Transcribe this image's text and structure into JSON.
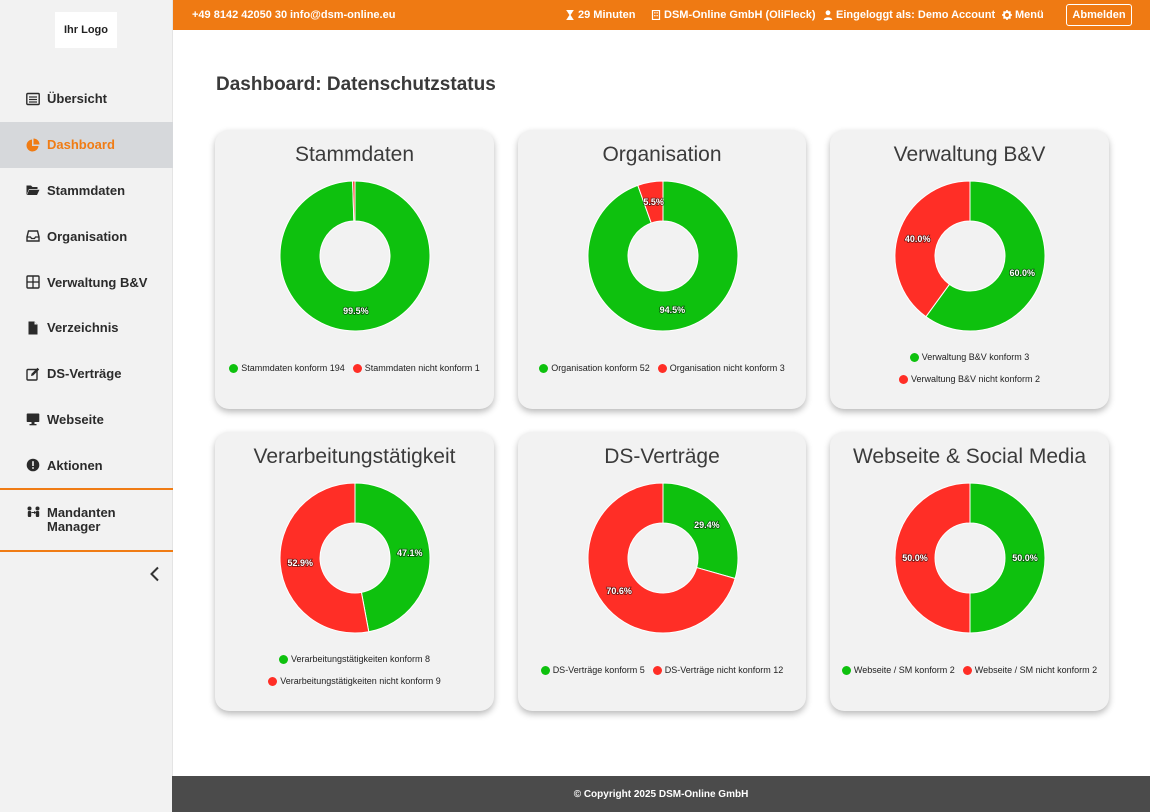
{
  "logo": {
    "text": "Ihr Logo"
  },
  "topbar": {
    "phone": "+49 8142 42050 30",
    "email": "info@dsm-online.eu",
    "timer": "29 Minuten",
    "company": "DSM-Online GmbH (OliFleck)",
    "user": "Eingeloggt als: Demo Account",
    "menu": "Menü",
    "logout": "Abmelden"
  },
  "sidebar": {
    "items": [
      {
        "label": "Übersicht",
        "icon": "list-icon",
        "active": false
      },
      {
        "label": "Dashboard",
        "icon": "pie-chart-icon",
        "active": true
      },
      {
        "label": "Stammdaten",
        "icon": "folder-open-icon",
        "active": false
      },
      {
        "label": "Organisation",
        "icon": "inbox-icon",
        "active": false
      },
      {
        "label": "Verwaltung B&V",
        "icon": "grid-icon",
        "active": false
      },
      {
        "label": "Verzeichnis",
        "icon": "file-icon",
        "active": false
      },
      {
        "label": "DS-Verträge",
        "icon": "edit-icon",
        "active": false
      },
      {
        "label": "Webseite",
        "icon": "monitor-icon",
        "active": false
      },
      {
        "label": "Aktionen",
        "icon": "alert-icon",
        "active": false
      }
    ],
    "mandanten_line1": "Mandanten",
    "mandanten_line2": "Manager"
  },
  "page": {
    "title": "Dashboard: Datenschutzstatus"
  },
  "colors": {
    "green": "#0ec10e",
    "red": "#ff2e26",
    "accent": "#ef7a13"
  },
  "chart_data": [
    {
      "type": "pie",
      "title": "Stammdaten",
      "labels": [
        "Stammdaten konform",
        "Stammdaten nicht konform"
      ],
      "values": [
        194,
        1
      ],
      "percent_labels": [
        "99.5%",
        ""
      ],
      "legend_text": [
        "Stammdaten konform 194",
        "Stammdaten nicht konform 1"
      ]
    },
    {
      "type": "pie",
      "title": "Organisation",
      "labels": [
        "Organisation konform",
        "Organisation nicht konform"
      ],
      "values": [
        52,
        3
      ],
      "percent_labels": [
        "94.5%",
        "5.5%"
      ],
      "legend_text": [
        "Organisation konform 52",
        "Organisation nicht konform 3"
      ]
    },
    {
      "type": "pie",
      "title": "Verwaltung B&V",
      "labels": [
        "Verwaltung B&V konform",
        "Verwaltung B&V nicht konform"
      ],
      "values": [
        3,
        2
      ],
      "percent_labels": [
        "60.0%",
        "40.0%"
      ],
      "legend_text": [
        "Verwaltung B&V konform 3",
        "Verwaltung B&V nicht konform 2"
      ]
    },
    {
      "type": "pie",
      "title": "Verarbeitungstätigkeit",
      "labels": [
        "Verarbeitungstätigkeiten konform",
        "Verarbeitungstätigkeiten nicht konform"
      ],
      "values": [
        8,
        9
      ],
      "percent_labels": [
        "47.1%",
        "52.9%"
      ],
      "legend_text": [
        "Verarbeitungstätigkeiten konform 8",
        "Verarbeitungstätigkeiten nicht konform 9"
      ]
    },
    {
      "type": "pie",
      "title": "DS-Verträge",
      "labels": [
        "DS-Verträge konform",
        "DS-Verträge nicht konform"
      ],
      "values": [
        5,
        12
      ],
      "percent_labels": [
        "29.4%",
        "70.6%"
      ],
      "legend_text": [
        "DS-Verträge konform 5",
        "DS-Verträge nicht konform 12"
      ]
    },
    {
      "type": "pie",
      "title": "Webseite & Social Media",
      "labels": [
        "Webseite / SM konform",
        "Webseite / SM nicht konform"
      ],
      "values": [
        2,
        2
      ],
      "percent_labels": [
        "50.0%",
        "50.0%"
      ],
      "legend_text": [
        "Webseite / SM konform 2",
        "Webseite / SM nicht konform 2"
      ]
    }
  ],
  "footer": {
    "text": "© Copyright 2025 DSM-Online GmbH"
  }
}
